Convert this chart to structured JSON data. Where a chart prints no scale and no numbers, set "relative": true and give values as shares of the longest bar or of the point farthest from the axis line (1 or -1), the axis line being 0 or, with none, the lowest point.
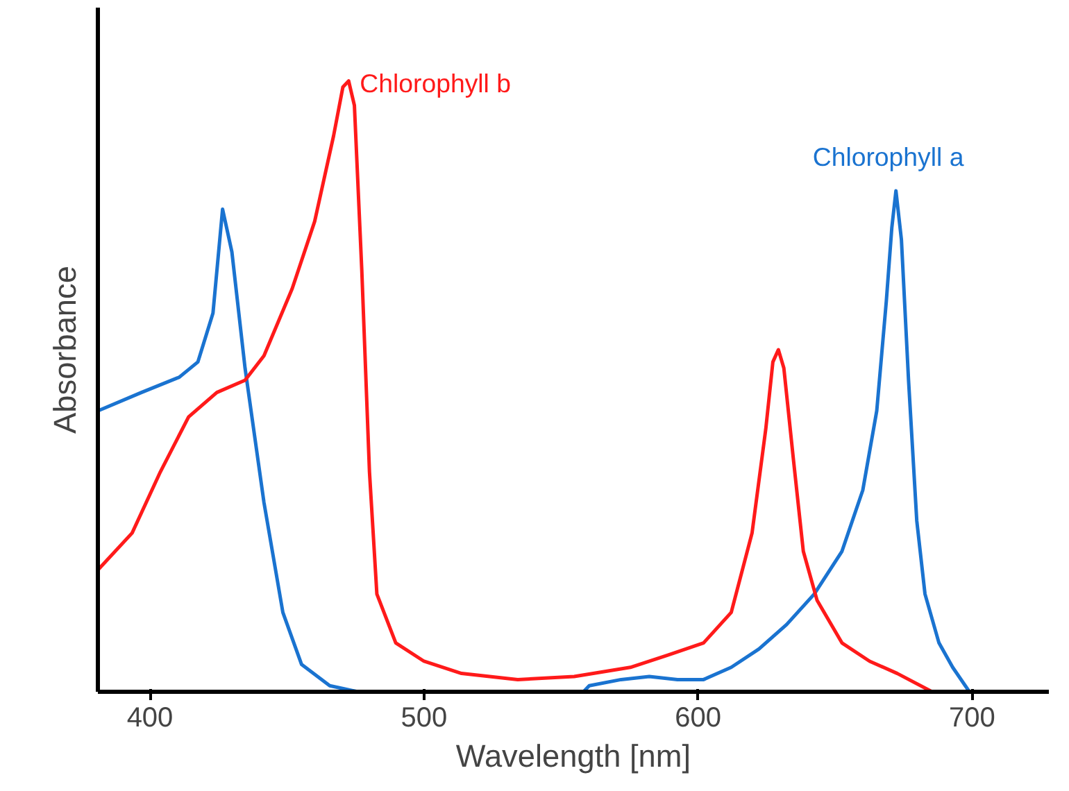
{
  "chart_data": {
    "type": "line",
    "relative": true,
    "xlabel": "Wavelength [nm]",
    "ylabel": "Absorbance",
    "xlim": [
      381,
      728
    ],
    "xticks": [
      400,
      500,
      600,
      700
    ],
    "grid": false,
    "legend": false,
    "marker": "none",
    "line_style": "solid",
    "series": [
      {
        "name": "Chlorophyll a",
        "color": "#1a73d0",
        "x": [
          381.1,
          396.9,
          410.7,
          417.5,
          423.0,
          426.5,
          429.9,
          434.7,
          441.6,
          448.5,
          455.3,
          465.6,
          475.9,
          517,
          558.2,
          560.3,
          571.9,
          582.2,
          592.5,
          602.0,
          612.1,
          622.2,
          632.3,
          642.4,
          652.5,
          660.1,
          665.2,
          668.7,
          670.7,
          672.2,
          674.2,
          676.8,
          679.8,
          682.8,
          687.9,
          692.9,
          699.0
        ],
        "values": [
          0.46,
          0.49,
          0.515,
          0.54,
          0.62,
          0.79,
          0.72,
          0.53,
          0.31,
          0.13,
          0.045,
          0.01,
          0,
          null,
          0,
          0.01,
          0.02,
          0.025,
          0.02,
          0.02,
          0.04,
          0.07,
          0.11,
          0.16,
          0.23,
          0.33,
          0.46,
          0.64,
          0.76,
          0.82,
          0.74,
          0.51,
          0.28,
          0.16,
          0.08,
          0.04,
          0
        ]
      },
      {
        "name": "Chlorophyll b",
        "color": "#ff1a1a",
        "x": [
          381.1,
          393.5,
          403.8,
          414.1,
          424.4,
          434.7,
          441.6,
          451.9,
          460.1,
          467.0,
          470.4,
          472.5,
          474.6,
          477.3,
          480.1,
          482.8,
          489.7,
          500,
          513.7,
          534.2,
          554.8,
          575.3,
          589.0,
          602.0,
          612.1,
          619.7,
          624.7,
          627.3,
          629.3,
          631.3,
          634.8,
          638.4,
          643.4,
          652.5,
          662.6,
          672.7,
          685.4
        ],
        "values": [
          0.2,
          0.26,
          0.36,
          0.45,
          0.49,
          0.51,
          0.55,
          0.66,
          0.77,
          0.91,
          0.99,
          1.0,
          0.96,
          0.69,
          0.36,
          0.16,
          0.08,
          0.05,
          0.03,
          0.02,
          0.025,
          0.04,
          0.06,
          0.08,
          0.13,
          0.26,
          0.43,
          0.54,
          0.56,
          0.53,
          0.38,
          0.23,
          0.15,
          0.08,
          0.05,
          0.03,
          0
        ]
      }
    ]
  }
}
